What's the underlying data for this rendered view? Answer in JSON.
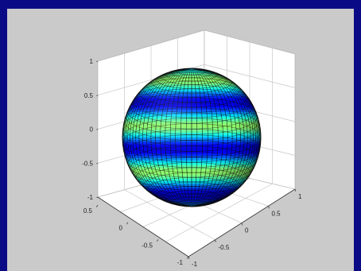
{
  "colors": {
    "frame": "#0a0a86",
    "figure_background": "#cacaca",
    "axes_background": "#ffffff",
    "grid": "#c8c8c8",
    "mesh_edges": "#0a0a0a",
    "colormap": "jet"
  },
  "chart_data": {
    "type": "surface",
    "surface": "sphere",
    "coloring": "horizontal bands by height (z)",
    "band_sequence_top_to_bottom": [
      "dark blue",
      "cyan",
      "light green",
      "blue",
      "cyan",
      "green",
      "blue",
      "cyan",
      "light green",
      "blue",
      "cyan",
      "dark blue"
    ],
    "view": "3-D isometric",
    "grid": true,
    "xlim": [
      -1,
      1
    ],
    "ylim": [
      -1,
      1
    ],
    "zlim": [
      -1,
      1
    ],
    "x_ticks": [
      "-1",
      "-0.5",
      "0",
      "0.5",
      "1"
    ],
    "y_ticks": [
      "-1",
      "-0.5",
      "0",
      "0.5"
    ],
    "z_ticks": [
      "1",
      "0.5",
      "0",
      "-0.5",
      "-1"
    ]
  }
}
